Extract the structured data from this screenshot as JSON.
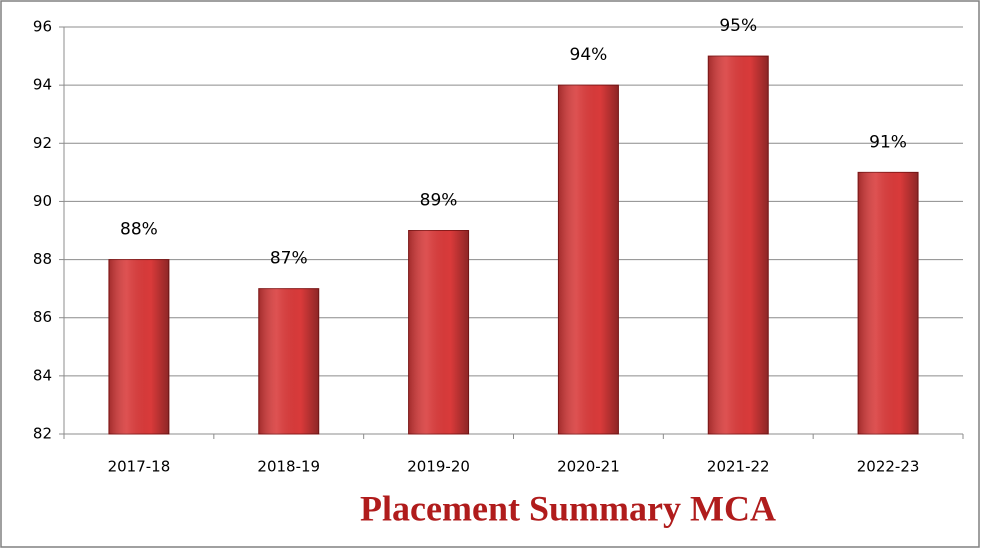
{
  "chart_data": {
    "type": "bar",
    "title": "Placement Summary MCA",
    "categories": [
      "2017-18",
      "2018-19",
      "2019-20",
      "2020-21",
      "2021-22",
      "2022-23"
    ],
    "values": [
      88,
      87,
      89,
      94,
      95,
      91
    ],
    "value_labels": [
      "88%",
      "87%",
      "89%",
      "94%",
      "95%",
      "91%"
    ],
    "color": "#d93a3a",
    "ylim": [
      82,
      96
    ],
    "yticks": [
      82,
      84,
      86,
      88,
      90,
      92,
      94,
      96
    ],
    "grid": true
  }
}
